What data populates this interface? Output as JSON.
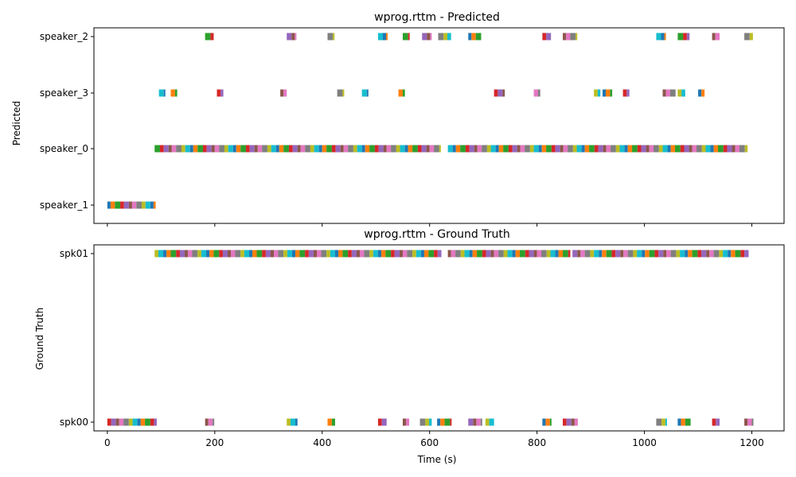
{
  "chart_data": [
    {
      "type": "timeline",
      "title": "wprog.rttm - Predicted",
      "xlabel": "",
      "ylabel": "Predicted",
      "xlim": [
        -25,
        1260
      ],
      "categories": [
        "speaker_1",
        "speaker_0",
        "speaker_3",
        "speaker_2"
      ],
      "series": [
        {
          "name": "speaker_1",
          "segments": [
            [
              0,
              90
            ]
          ]
        },
        {
          "name": "speaker_0",
          "segments": [
            [
              88,
              620
            ],
            [
              634,
              1192
            ]
          ]
        },
        {
          "name": "speaker_3",
          "segments": [
            [
              96,
              106
            ],
            [
              118,
              130
            ],
            [
              204,
              216
            ],
            [
              322,
              334
            ],
            [
              428,
              440
            ],
            [
              474,
              486
            ],
            [
              542,
              554
            ],
            [
              720,
              740
            ],
            [
              794,
              806
            ],
            [
              906,
              918
            ],
            [
              922,
              940
            ],
            [
              960,
              972
            ],
            [
              1034,
              1058
            ],
            [
              1062,
              1076
            ],
            [
              1100,
              1112
            ]
          ]
        },
        {
          "name": "speaker_2",
          "segments": [
            [
              182,
              198
            ],
            [
              334,
              352
            ],
            [
              410,
              422
            ],
            [
              504,
              520
            ],
            [
              550,
              562
            ],
            [
              586,
              604
            ],
            [
              616,
              640
            ],
            [
              672,
              696
            ],
            [
              810,
              826
            ],
            [
              848,
              874
            ],
            [
              1022,
              1040
            ],
            [
              1062,
              1084
            ],
            [
              1126,
              1140
            ],
            [
              1186,
              1202
            ]
          ]
        }
      ]
    },
    {
      "type": "timeline",
      "title": "wprog.rttm - Ground Truth",
      "xlabel": "Time (s)",
      "ylabel": "Ground Truth",
      "xlim": [
        -25,
        1260
      ],
      "xticks": [
        0,
        200,
        400,
        600,
        800,
        1000,
        1200
      ],
      "categories": [
        "spk00",
        "spk01"
      ],
      "series": [
        {
          "name": "spk00",
          "segments": [
            [
              0,
              92
            ],
            [
              182,
              198
            ],
            [
              334,
              354
            ],
            [
              410,
              424
            ],
            [
              504,
              520
            ],
            [
              550,
              562
            ],
            [
              582,
              604
            ],
            [
              614,
              640
            ],
            [
              672,
              696
            ],
            [
              704,
              720
            ],
            [
              810,
              826
            ],
            [
              848,
              876
            ],
            [
              1022,
              1042
            ],
            [
              1062,
              1086
            ],
            [
              1126,
              1140
            ],
            [
              1186,
              1202
            ]
          ]
        },
        {
          "name": "spk01",
          "segments": [
            [
              88,
              622
            ],
            [
              634,
              862
            ],
            [
              866,
              1194
            ]
          ]
        }
      ]
    }
  ],
  "palette": [
    "#1f77b4",
    "#ff7f0e",
    "#2ca02c",
    "#d62728",
    "#9467bd",
    "#8c564b",
    "#e377c2",
    "#7f7f7f",
    "#bcbd22",
    "#17becf"
  ]
}
